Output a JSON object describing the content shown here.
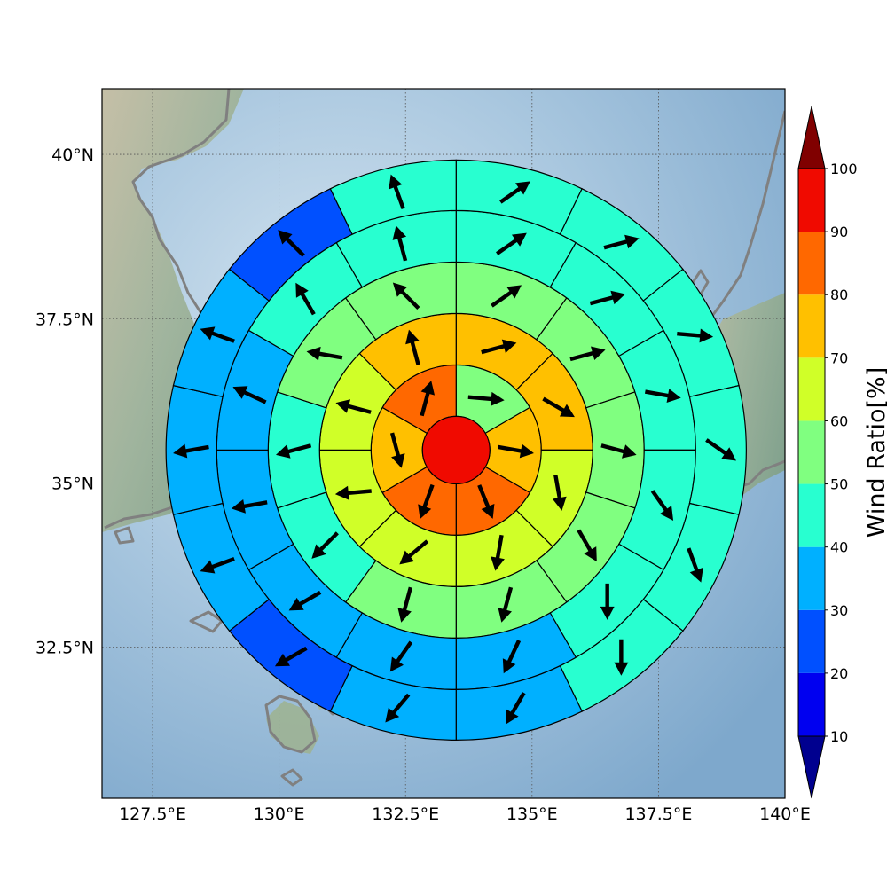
{
  "chart_data": {
    "type": "polar-sector-map",
    "title": "",
    "x_axis": {
      "ticks": [
        127.5,
        130,
        132.5,
        135,
        137.5,
        140
      ],
      "tick_labels": [
        "127.5°E",
        "130°E",
        "132.5°E",
        "135°E",
        "137.5°E",
        "140°E"
      ],
      "range": [
        126.5,
        140
      ]
    },
    "y_axis": {
      "ticks": [
        32.5,
        35,
        37.5,
        40
      ],
      "tick_labels": [
        "32.5°N",
        "35°N",
        "37.5°N",
        "40°N"
      ],
      "range": [
        30.2,
        41.0
      ]
    },
    "grid": true,
    "center": {
      "lon": 133.5,
      "lat": 35.5
    },
    "center_value": 95,
    "rings": [
      {
        "sectors": 6,
        "values": [
          55,
          75,
          85,
          85,
          75,
          85
        ],
        "arrow_dirs_deg": [
          95,
          100,
          158,
          200,
          165,
          15
        ]
      },
      {
        "sectors": 8,
        "values": [
          75,
          75,
          65,
          65,
          65,
          65,
          65,
          75
        ],
        "arrow_dirs_deg": [
          75,
          120,
          170,
          190,
          230,
          265,
          285,
          345
        ]
      },
      {
        "sectors": 10,
        "values": [
          55,
          55,
          55,
          55,
          55,
          55,
          45,
          45,
          55,
          55
        ],
        "arrow_dirs_deg": [
          55,
          75,
          105,
          150,
          195,
          195,
          225,
          255,
          280,
          315
        ]
      },
      {
        "sectors": 12,
        "values": [
          45,
          45,
          45,
          45,
          45,
          35,
          35,
          35,
          35,
          35,
          45,
          45
        ],
        "arrow_dirs_deg": [
          55,
          75,
          100,
          145,
          180,
          205,
          215,
          240,
          260,
          295,
          330,
          345
        ]
      },
      {
        "sectors": 14,
        "values": [
          45,
          45,
          45,
          45,
          45,
          45,
          35,
          35,
          25,
          35,
          35,
          35,
          25,
          45
        ],
        "arrow_dirs_deg": [
          55,
          75,
          95,
          125,
          160,
          180,
          210,
          220,
          240,
          250,
          260,
          290,
          315,
          340
        ]
      }
    ],
    "colorbar": {
      "label": "Wind Ratio[%]",
      "ticks": [
        10,
        20,
        30,
        40,
        50,
        60,
        70,
        80,
        90,
        100
      ],
      "tick_labels": [
        "10",
        "20",
        "30",
        "40",
        "50",
        "60",
        "70",
        "80",
        "90",
        "100"
      ],
      "colors": [
        "#00008f",
        "#0000f0",
        "#0050ff",
        "#00b0ff",
        "#28ffd0",
        "#80ff80",
        "#d0ff28",
        "#ffc000",
        "#ff6800",
        "#f00a00",
        "#800000"
      ],
      "extend": "both"
    }
  }
}
